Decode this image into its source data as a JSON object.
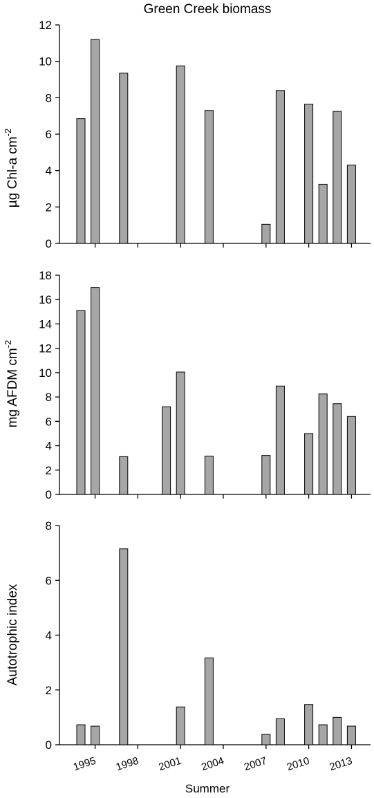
{
  "figure_title": "Green Creek biomass",
  "xlabel": "Summer",
  "colors": {
    "bar_fill": "#a6a6a6",
    "bar_stroke": "#000000"
  },
  "chart_data": [
    {
      "type": "bar",
      "title": "Green Creek biomass",
      "ylabel_main": "µg Chl-a cm",
      "ylabel_sup": "-2",
      "xlabel": "",
      "x": [
        1994,
        1995,
        1997,
        2001,
        2003,
        2007,
        2008,
        2010,
        2011,
        2012,
        2013
      ],
      "values": [
        6.85,
        11.2,
        9.35,
        9.75,
        7.3,
        1.05,
        8.4,
        7.65,
        3.25,
        7.25,
        4.3
      ],
      "ylim": [
        0,
        12
      ],
      "yticks": [
        0,
        2,
        4,
        6,
        8,
        10,
        12
      ],
      "grid": false,
      "legend": "none"
    },
    {
      "type": "bar",
      "title": "",
      "ylabel_main": "mg AFDM cm",
      "ylabel_sup": "-2",
      "xlabel": "",
      "x": [
        1994,
        1995,
        1997,
        2000,
        2001,
        2003,
        2007,
        2008,
        2010,
        2011,
        2012,
        2013
      ],
      "values": [
        15.1,
        17.0,
        3.1,
        7.2,
        10.05,
        3.15,
        3.2,
        8.9,
        5.0,
        8.25,
        7.45,
        6.4
      ],
      "ylim": [
        0,
        18
      ],
      "yticks": [
        0,
        2,
        4,
        6,
        8,
        10,
        12,
        14,
        16,
        18
      ],
      "grid": false,
      "legend": "none"
    },
    {
      "type": "bar",
      "title": "",
      "ylabel_main": "Autotrophic index",
      "ylabel_sup": "",
      "xlabel": "Summer",
      "x": [
        1994,
        1995,
        1997,
        2001,
        2003,
        2007,
        2008,
        2010,
        2011,
        2012,
        2013
      ],
      "values": [
        0.73,
        0.68,
        7.15,
        1.38,
        3.17,
        0.38,
        0.95,
        1.47,
        0.73,
        1.0,
        0.68
      ],
      "ylim": [
        0,
        8
      ],
      "yticks": [
        0,
        2,
        4,
        6,
        8
      ],
      "xticks": [
        "1995",
        "1998",
        "2001",
        "2004",
        "2007",
        "2010",
        "2013"
      ],
      "grid": false,
      "legend": "none"
    }
  ]
}
